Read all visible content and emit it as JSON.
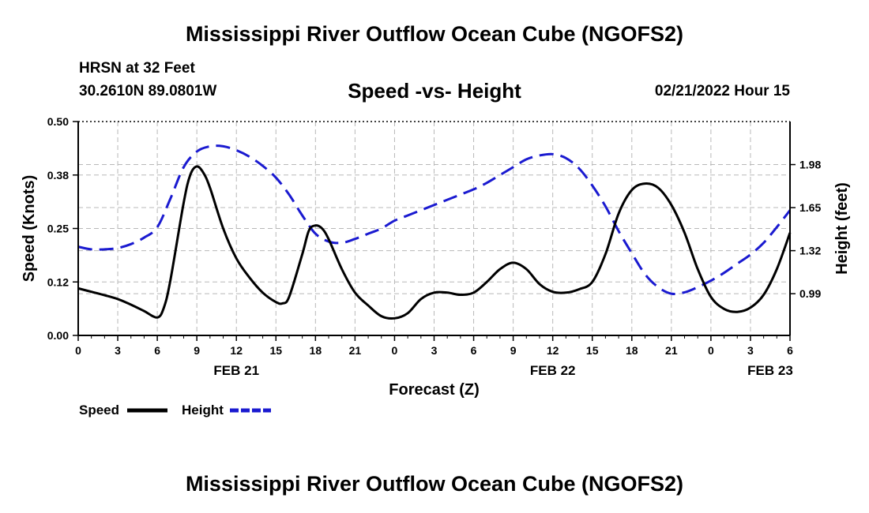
{
  "header": {
    "title": "Mississippi River Outflow Ocean Cube (NGOFS2)",
    "station": "HRSN at 32 Feet",
    "coordinates": "30.2610N  89.0801W",
    "chart_title": "Speed -vs- Height",
    "datetime": "02/21/2022 Hour 15"
  },
  "footer": {
    "title": "Mississippi River Outflow Ocean Cube (NGOFS2)"
  },
  "legend": {
    "speed_label": "Speed",
    "height_label": "Height"
  },
  "colors": {
    "speed": "#000000",
    "height": "#1a1ad0",
    "grid": "#b8b8b8"
  },
  "chart_data": {
    "type": "line",
    "title": "Speed -vs- Height",
    "xlabel": "Forecast (Z)",
    "ylabel": "Speed (Knots)",
    "y2label": "Height (feet)",
    "xlim": [
      0,
      54
    ],
    "ylim": [
      0,
      0.5
    ],
    "y2lim": [
      0.67,
      2.31
    ],
    "grid": true,
    "x_ticks": [
      0,
      3,
      6,
      9,
      12,
      15,
      18,
      21,
      24,
      27,
      30,
      33,
      36,
      39,
      42,
      45,
      48,
      51,
      54
    ],
    "x_tick_labels": [
      "0",
      "3",
      "6",
      "9",
      "12",
      "15",
      "18",
      "21",
      "0",
      "3",
      "6",
      "9",
      "12",
      "15",
      "18",
      "21",
      "0",
      "3",
      "6"
    ],
    "y_ticks": [
      0,
      0.125,
      0.25,
      0.375,
      0.5
    ],
    "y_tick_labels": [
      "0.00",
      "0.12",
      "0.25",
      "0.38",
      "0.50"
    ],
    "y2_ticks": [
      0.99,
      1.32,
      1.65,
      1.98
    ],
    "y2_tick_labels": [
      "0.99",
      "1.32",
      "1.65",
      "1.98"
    ],
    "date_labels": [
      {
        "x": 12,
        "label": "FEB 21"
      },
      {
        "x": 36,
        "label": "FEB 22"
      },
      {
        "x": 52.5,
        "label": "FEB 23"
      }
    ],
    "series": [
      {
        "name": "Speed",
        "axis": "left",
        "style": "solid",
        "x": [
          0,
          1,
          2,
          3,
          4,
          5,
          6,
          6.5,
          7,
          8,
          8.5,
          9,
          9.5,
          10,
          11,
          12,
          13,
          14,
          15,
          15.5,
          16,
          17,
          17.5,
          18,
          18.5,
          19,
          20,
          21,
          22,
          23,
          24,
          25,
          26,
          27,
          28,
          29,
          30,
          31,
          32,
          33,
          34,
          35,
          36,
          37,
          38,
          39,
          40,
          41,
          42,
          43,
          44,
          45,
          46,
          47,
          48,
          49,
          50,
          51,
          52,
          53,
          54
        ],
        "values": [
          0.11,
          0.102,
          0.094,
          0.085,
          0.072,
          0.057,
          0.042,
          0.065,
          0.13,
          0.31,
          0.375,
          0.395,
          0.38,
          0.345,
          0.25,
          0.18,
          0.135,
          0.1,
          0.078,
          0.075,
          0.09,
          0.19,
          0.245,
          0.257,
          0.25,
          0.225,
          0.155,
          0.1,
          0.07,
          0.045,
          0.04,
          0.052,
          0.085,
          0.1,
          0.1,
          0.095,
          0.1,
          0.125,
          0.155,
          0.17,
          0.155,
          0.12,
          0.102,
          0.1,
          0.108,
          0.125,
          0.19,
          0.285,
          0.34,
          0.355,
          0.345,
          0.305,
          0.24,
          0.155,
          0.09,
          0.062,
          0.055,
          0.065,
          0.095,
          0.155,
          0.24
        ]
      },
      {
        "name": "Height",
        "axis": "right",
        "style": "dashed",
        "x": [
          0,
          1,
          2,
          3,
          4,
          5,
          6,
          7,
          8,
          9,
          10,
          11,
          12,
          13,
          14,
          15,
          16,
          17,
          18,
          19,
          20,
          21,
          22,
          23,
          24,
          25,
          26,
          27,
          28,
          29,
          30,
          31,
          32,
          33,
          34,
          35,
          36,
          37,
          38,
          39,
          40,
          41,
          42,
          43,
          44,
          45,
          46,
          47,
          48,
          49,
          50,
          51,
          52,
          53,
          54
        ],
        "values": [
          1.35,
          1.33,
          1.33,
          1.34,
          1.37,
          1.42,
          1.5,
          1.72,
          1.96,
          2.08,
          2.12,
          2.12,
          2.09,
          2.04,
          1.97,
          1.88,
          1.75,
          1.59,
          1.45,
          1.39,
          1.38,
          1.41,
          1.45,
          1.49,
          1.55,
          1.59,
          1.63,
          1.67,
          1.71,
          1.75,
          1.79,
          1.84,
          1.9,
          1.96,
          2.02,
          2.05,
          2.06,
          2.03,
          1.95,
          1.82,
          1.66,
          1.47,
          1.3,
          1.14,
          1.04,
          0.99,
          1.0,
          1.04,
          1.09,
          1.15,
          1.22,
          1.29,
          1.38,
          1.5,
          1.63
        ]
      }
    ]
  }
}
